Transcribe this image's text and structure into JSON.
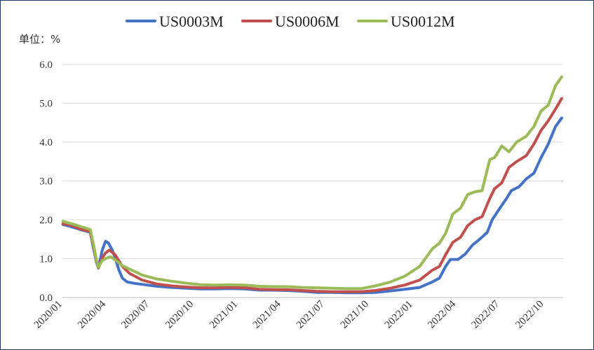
{
  "chart_data": {
    "type": "line",
    "unit_label": "单位：%",
    "y_ticks": [
      "0.0",
      "1.0",
      "2.0",
      "3.0",
      "4.0",
      "5.0",
      "6.0"
    ],
    "ylim": [
      0,
      6
    ],
    "grid": true,
    "legend_position": "top",
    "x_tick_labels": [
      "2020/01",
      "2020/04",
      "2020/07",
      "2020/10",
      "2021/01",
      "2021/04",
      "2021/07",
      "2021/10",
      "2022/01",
      "2022/04",
      "2022/07",
      "2022/10"
    ],
    "x_ticks": [
      "2020-01-01",
      "2020-04-01",
      "2020-07-01",
      "2020-10-01",
      "2021-01-01",
      "2021-04-01",
      "2021-07-01",
      "2021-10-01",
      "2022-01-01",
      "2022-04-01",
      "2022-07-01",
      "2022-10-01"
    ],
    "xlim": [
      "2020-01-01",
      "2022-11-10"
    ],
    "series": [
      {
        "name": "US0003M",
        "color": "#4472c4",
        "points": [
          [
            "2020-01-02",
            1.88
          ],
          [
            "2020-01-20",
            1.82
          ],
          [
            "2020-02-10",
            1.74
          ],
          [
            "2020-02-28",
            1.68
          ],
          [
            "2020-03-06",
            1.25
          ],
          [
            "2020-03-12",
            0.9
          ],
          [
            "2020-03-16",
            0.76
          ],
          [
            "2020-03-24",
            1.22
          ],
          [
            "2020-03-31",
            1.45
          ],
          [
            "2020-04-06",
            1.4
          ],
          [
            "2020-04-14",
            1.22
          ],
          [
            "2020-04-20",
            1.02
          ],
          [
            "2020-04-28",
            0.7
          ],
          [
            "2020-05-05",
            0.5
          ],
          [
            "2020-05-15",
            0.4
          ],
          [
            "2020-06-01",
            0.36
          ],
          [
            "2020-06-20",
            0.33
          ],
          [
            "2020-07-15",
            0.29
          ],
          [
            "2020-08-15",
            0.26
          ],
          [
            "2020-09-15",
            0.24
          ],
          [
            "2020-10-15",
            0.22
          ],
          [
            "2020-11-15",
            0.22
          ],
          [
            "2020-12-15",
            0.23
          ],
          [
            "2021-01-15",
            0.22
          ],
          [
            "2021-02-15",
            0.19
          ],
          [
            "2021-03-15",
            0.19
          ],
          [
            "2021-04-15",
            0.18
          ],
          [
            "2021-05-15",
            0.16
          ],
          [
            "2021-06-15",
            0.13
          ],
          [
            "2021-07-15",
            0.13
          ],
          [
            "2021-08-15",
            0.12
          ],
          [
            "2021-09-15",
            0.12
          ],
          [
            "2021-10-15",
            0.13
          ],
          [
            "2021-11-15",
            0.17
          ],
          [
            "2021-12-15",
            0.21
          ],
          [
            "2022-01-15",
            0.26
          ],
          [
            "2022-02-10",
            0.4
          ],
          [
            "2022-02-25",
            0.5
          ],
          [
            "2022-03-10",
            0.8
          ],
          [
            "2022-03-20",
            0.98
          ],
          [
            "2022-04-05",
            0.98
          ],
          [
            "2022-04-20",
            1.12
          ],
          [
            "2022-05-05",
            1.35
          ],
          [
            "2022-05-20",
            1.5
          ],
          [
            "2022-06-05",
            1.68
          ],
          [
            "2022-06-15",
            2.0
          ],
          [
            "2022-06-30",
            2.28
          ],
          [
            "2022-07-15",
            2.55
          ],
          [
            "2022-07-25",
            2.75
          ],
          [
            "2022-08-10",
            2.85
          ],
          [
            "2022-08-25",
            3.05
          ],
          [
            "2022-09-10",
            3.2
          ],
          [
            "2022-09-25",
            3.6
          ],
          [
            "2022-10-10",
            3.95
          ],
          [
            "2022-10-25",
            4.4
          ],
          [
            "2022-11-07",
            4.62
          ]
        ]
      },
      {
        "name": "US0006M",
        "color": "#c0504d",
        "points": [
          [
            "2020-01-02",
            1.9
          ],
          [
            "2020-01-20",
            1.86
          ],
          [
            "2020-02-10",
            1.75
          ],
          [
            "2020-02-28",
            1.7
          ],
          [
            "2020-03-06",
            1.3
          ],
          [
            "2020-03-12",
            0.95
          ],
          [
            "2020-03-16",
            0.76
          ],
          [
            "2020-03-24",
            1.02
          ],
          [
            "2020-03-31",
            1.15
          ],
          [
            "2020-04-08",
            1.22
          ],
          [
            "2020-04-20",
            1.1
          ],
          [
            "2020-05-05",
            0.8
          ],
          [
            "2020-05-20",
            0.62
          ],
          [
            "2020-06-15",
            0.45
          ],
          [
            "2020-07-15",
            0.35
          ],
          [
            "2020-08-15",
            0.3
          ],
          [
            "2020-09-15",
            0.27
          ],
          [
            "2020-10-15",
            0.25
          ],
          [
            "2020-11-15",
            0.25
          ],
          [
            "2020-12-15",
            0.26
          ],
          [
            "2021-01-15",
            0.25
          ],
          [
            "2021-02-15",
            0.21
          ],
          [
            "2021-03-15",
            0.2
          ],
          [
            "2021-04-15",
            0.2
          ],
          [
            "2021-05-15",
            0.18
          ],
          [
            "2021-06-15",
            0.16
          ],
          [
            "2021-07-15",
            0.15
          ],
          [
            "2021-08-15",
            0.15
          ],
          [
            "2021-09-15",
            0.15
          ],
          [
            "2021-10-15",
            0.18
          ],
          [
            "2021-11-15",
            0.24
          ],
          [
            "2021-12-15",
            0.32
          ],
          [
            "2022-01-15",
            0.45
          ],
          [
            "2022-02-10",
            0.7
          ],
          [
            "2022-02-25",
            0.8
          ],
          [
            "2022-03-10",
            1.1
          ],
          [
            "2022-03-25",
            1.42
          ],
          [
            "2022-04-10",
            1.55
          ],
          [
            "2022-04-25",
            1.85
          ],
          [
            "2022-05-10",
            2.0
          ],
          [
            "2022-05-25",
            2.08
          ],
          [
            "2022-06-10",
            2.55
          ],
          [
            "2022-06-20",
            2.8
          ],
          [
            "2022-07-05",
            2.95
          ],
          [
            "2022-07-20",
            3.35
          ],
          [
            "2022-08-05",
            3.5
          ],
          [
            "2022-08-25",
            3.65
          ],
          [
            "2022-09-10",
            3.95
          ],
          [
            "2022-09-25",
            4.3
          ],
          [
            "2022-10-10",
            4.55
          ],
          [
            "2022-10-25",
            4.85
          ],
          [
            "2022-11-07",
            5.12
          ]
        ]
      },
      {
        "name": "US0012M",
        "color": "#9bbb59",
        "points": [
          [
            "2020-01-02",
            1.96
          ],
          [
            "2020-01-20",
            1.9
          ],
          [
            "2020-02-10",
            1.82
          ],
          [
            "2020-02-28",
            1.75
          ],
          [
            "2020-03-06",
            1.35
          ],
          [
            "2020-03-12",
            0.95
          ],
          [
            "2020-03-16",
            0.78
          ],
          [
            "2020-03-24",
            0.95
          ],
          [
            "2020-03-31",
            1.0
          ],
          [
            "2020-04-10",
            1.05
          ],
          [
            "2020-04-22",
            0.95
          ],
          [
            "2020-05-05",
            0.82
          ],
          [
            "2020-05-25",
            0.7
          ],
          [
            "2020-06-15",
            0.58
          ],
          [
            "2020-07-15",
            0.48
          ],
          [
            "2020-08-15",
            0.42
          ],
          [
            "2020-09-15",
            0.37
          ],
          [
            "2020-10-15",
            0.33
          ],
          [
            "2020-11-15",
            0.32
          ],
          [
            "2020-12-15",
            0.33
          ],
          [
            "2021-01-15",
            0.32
          ],
          [
            "2021-02-15",
            0.29
          ],
          [
            "2021-03-15",
            0.28
          ],
          [
            "2021-04-15",
            0.28
          ],
          [
            "2021-05-15",
            0.26
          ],
          [
            "2021-06-15",
            0.25
          ],
          [
            "2021-07-15",
            0.24
          ],
          [
            "2021-08-15",
            0.23
          ],
          [
            "2021-09-15",
            0.23
          ],
          [
            "2021-10-15",
            0.3
          ],
          [
            "2021-11-15",
            0.4
          ],
          [
            "2021-12-15",
            0.55
          ],
          [
            "2022-01-15",
            0.8
          ],
          [
            "2022-02-10",
            1.25
          ],
          [
            "2022-02-25",
            1.4
          ],
          [
            "2022-03-10",
            1.65
          ],
          [
            "2022-03-25",
            2.15
          ],
          [
            "2022-04-10",
            2.3
          ],
          [
            "2022-04-25",
            2.65
          ],
          [
            "2022-05-10",
            2.72
          ],
          [
            "2022-05-25",
            2.75
          ],
          [
            "2022-06-10",
            3.55
          ],
          [
            "2022-06-20",
            3.6
          ],
          [
            "2022-07-05",
            3.9
          ],
          [
            "2022-07-20",
            3.75
          ],
          [
            "2022-08-05",
            4.0
          ],
          [
            "2022-08-25",
            4.15
          ],
          [
            "2022-09-10",
            4.4
          ],
          [
            "2022-09-25",
            4.8
          ],
          [
            "2022-10-10",
            4.95
          ],
          [
            "2022-10-25",
            5.45
          ],
          [
            "2022-11-07",
            5.68
          ]
        ]
      }
    ]
  }
}
